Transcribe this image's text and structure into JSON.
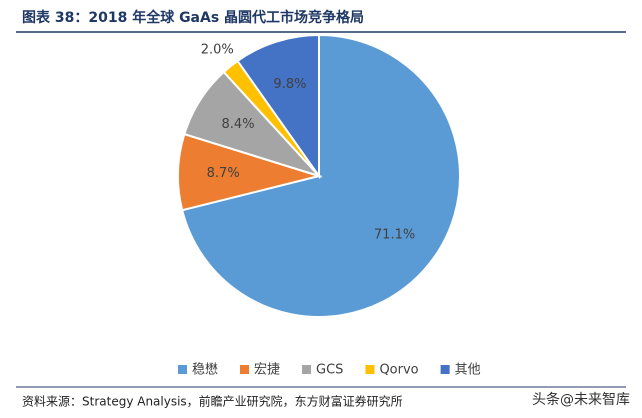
{
  "chart_data": {
    "type": "pie",
    "title": "图表 38：2018 年全球 GaAs 晶圆代工市场竞争格局",
    "categories": [
      "稳懋",
      "宏捷",
      "GCS",
      "Qorvo",
      "其他"
    ],
    "values": [
      71.1,
      8.7,
      8.4,
      2.0,
      9.8
    ],
    "value_labels": [
      "71.1%",
      "8.7%",
      "8.4%",
      "2.0%",
      "9.8%"
    ],
    "colors": [
      "#5b9bd5",
      "#ed7d31",
      "#a5a5a5",
      "#ffc000",
      "#4472c4"
    ],
    "source": "资料来源：Strategy Analysis，前瞻产业研究院，东方财富证券研究所",
    "watermark": "头条@未来智库"
  }
}
